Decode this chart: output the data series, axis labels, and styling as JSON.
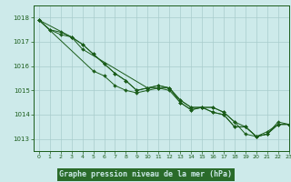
{
  "title": "Graphe pression niveau de la mer (hPa)",
  "bg_color": "#cdeaea",
  "grid_color": "#a8cccc",
  "line_color": "#1a5c1a",
  "label_bg": "#2a6b2a",
  "label_fg": "#cdeaea",
  "xlim": [
    -0.5,
    23
  ],
  "ylim": [
    1012.5,
    1018.5
  ],
  "yticks": [
    1013,
    1014,
    1015,
    1016,
    1017,
    1018
  ],
  "xticks": [
    0,
    1,
    2,
    3,
    4,
    5,
    6,
    7,
    8,
    9,
    10,
    11,
    12,
    13,
    14,
    15,
    16,
    17,
    18,
    19,
    20,
    21,
    22,
    23
  ],
  "line1_x": [
    0,
    1,
    2,
    3,
    4,
    5,
    6,
    7,
    8,
    9,
    10,
    11,
    12,
    13,
    14,
    15,
    16,
    17,
    18,
    19,
    20,
    21,
    22,
    23
  ],
  "line1_y": [
    1017.9,
    1017.5,
    1017.4,
    1017.2,
    1016.9,
    1016.5,
    1016.1,
    1015.7,
    1015.4,
    1015.0,
    1015.1,
    1015.2,
    1015.1,
    1014.6,
    1014.3,
    1014.3,
    1014.3,
    1014.1,
    1013.7,
    1013.2,
    1013.1,
    1013.3,
    1013.6,
    1013.6
  ],
  "line2_x": [
    0,
    1,
    2,
    3,
    4,
    5,
    6,
    7,
    8,
    9,
    10,
    11,
    12,
    13,
    14,
    15,
    16,
    17,
    18,
    19,
    20,
    21,
    22,
    23
  ],
  "line2_y": [
    1017.9,
    1017.5,
    1017.3,
    1017.2,
    1016.9,
    1016.5,
    1016.1,
    1015.7,
    1015.4,
    1015.0,
    1015.1,
    1015.2,
    1015.1,
    1014.6,
    1014.3,
    1014.3,
    1014.3,
    1014.1,
    1013.7,
    1013.5,
    1013.1,
    1013.2,
    1013.7,
    1013.6
  ],
  "line3_x": [
    0,
    3,
    4,
    10,
    11,
    12,
    13,
    14,
    15,
    16,
    17,
    18,
    19,
    20,
    21,
    22,
    23
  ],
  "line3_y": [
    1017.9,
    1017.2,
    1016.7,
    1015.1,
    1015.1,
    1015.1,
    1014.5,
    1014.2,
    1014.3,
    1014.1,
    1014.0,
    1013.5,
    1013.5,
    1013.1,
    1013.2,
    1013.6,
    1013.6
  ],
  "line4_x": [
    0,
    5,
    6,
    7,
    8,
    9,
    10,
    11,
    12,
    13,
    14,
    15,
    16,
    17,
    18,
    19,
    20,
    21,
    22,
    23
  ],
  "line4_y": [
    1017.9,
    1015.8,
    1015.6,
    1015.2,
    1015.0,
    1014.9,
    1015.0,
    1015.1,
    1015.0,
    1014.5,
    1014.2,
    1014.3,
    1014.1,
    1014.0,
    1013.5,
    1013.5,
    1013.1,
    1013.2,
    1013.6,
    1013.6
  ]
}
